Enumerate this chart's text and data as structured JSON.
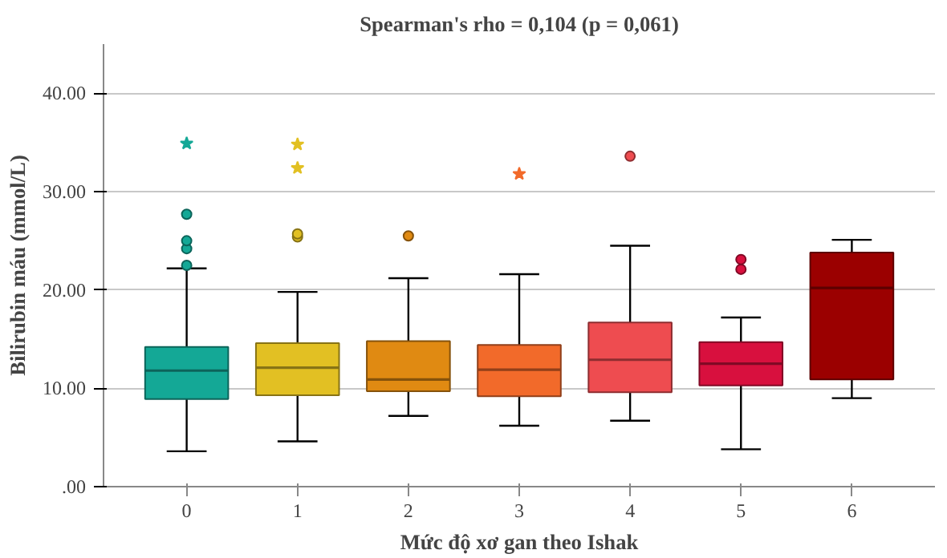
{
  "chart_data": {
    "type": "box",
    "title": "Spearman's rho = 0,104 (p = 0,061)",
    "xlabel": "Mức độ xơ gan theo Ishak",
    "ylabel": "Bilirubin máu (mmol/L)",
    "categories": [
      "0",
      "1",
      "2",
      "3",
      "4",
      "5",
      "6"
    ],
    "colors": [
      "#14a896",
      "#e2c023",
      "#e08a12",
      "#f26a2a",
      "#ee4c50",
      "#d8103e",
      "#9b0000"
    ],
    "boxes": [
      {
        "low": 3.6,
        "q1": 8.9,
        "median": 11.8,
        "q3": 14.2,
        "high": 22.2,
        "outliers": [
          22.5,
          24.2,
          25.0,
          27.7
        ]
      },
      {
        "low": 4.6,
        "q1": 9.3,
        "median": 12.1,
        "q3": 14.6,
        "high": 19.8,
        "outliers": [
          25.4,
          25.7
        ]
      },
      {
        "low": 7.2,
        "q1": 9.7,
        "median": 10.9,
        "q3": 14.8,
        "high": 21.2,
        "outliers": [
          25.5
        ]
      },
      {
        "low": 6.2,
        "q1": 9.2,
        "median": 11.9,
        "q3": 14.4,
        "high": 21.6
      },
      {
        "low": 6.7,
        "q1": 9.6,
        "median": 12.9,
        "q3": 16.7,
        "high": 24.5,
        "outliers": [
          33.6
        ]
      },
      {
        "low": 3.8,
        "q1": 10.3,
        "median": 12.5,
        "q3": 14.7,
        "high": 17.2,
        "outliers": [
          22.1,
          23.1
        ]
      },
      {
        "low": 9.0,
        "q1": 10.9,
        "median": 20.2,
        "q3": 23.8,
        "high": 25.1
      }
    ],
    "series": [
      {
        "type": "scatter",
        "marker": "star",
        "x": [
          "0",
          "1",
          "1",
          "3"
        ],
        "values": [
          34.9,
          34.8,
          32.4,
          31.8
        ],
        "colors": [
          "#14a896",
          "#e2c023",
          "#e2c023",
          "#f26a2a"
        ]
      }
    ],
    "ylim": [
      0,
      45
    ],
    "yticks": [
      {
        "value": 0,
        "label": ".00"
      },
      {
        "value": 10,
        "label": "10.00"
      },
      {
        "value": 20,
        "label": "20.00"
      },
      {
        "value": 30,
        "label": "30.00"
      },
      {
        "value": 40,
        "label": "40.00"
      }
    ],
    "grid": "y"
  }
}
